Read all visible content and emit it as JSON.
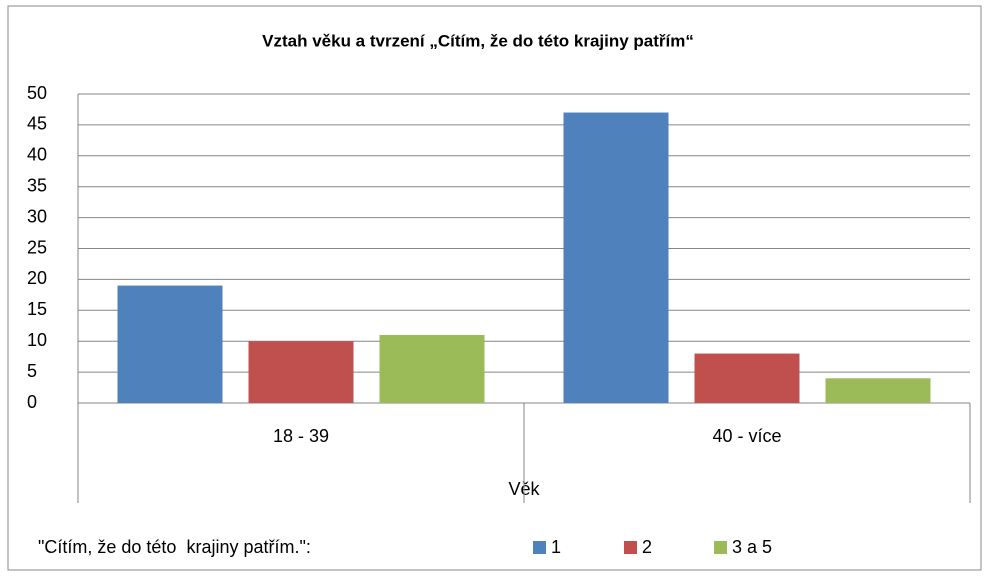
{
  "chart_data": {
    "type": "bar",
    "title": "Vztah věku a tvrzení „Cítím, že do této krajiny patřím“",
    "categories": [
      "18 - 39",
      "40 - více"
    ],
    "series": [
      {
        "name": "1",
        "color": "#4f81bd",
        "values": [
          19,
          47
        ]
      },
      {
        "name": "2",
        "color": "#c0504d",
        "values": [
          10,
          8
        ]
      },
      {
        "name": "3 a 5",
        "color": "#9bbb59",
        "values": [
          11,
          4
        ]
      }
    ],
    "x_label": "Věk",
    "legend_title": "\"Cítím, že do této  krajiny patřím.\":",
    "ylim": [
      0,
      50
    ],
    "yticks": [
      0,
      5,
      10,
      15,
      20,
      25,
      30,
      35,
      40,
      45,
      50
    ],
    "grid": true,
    "legend": "bottom"
  }
}
